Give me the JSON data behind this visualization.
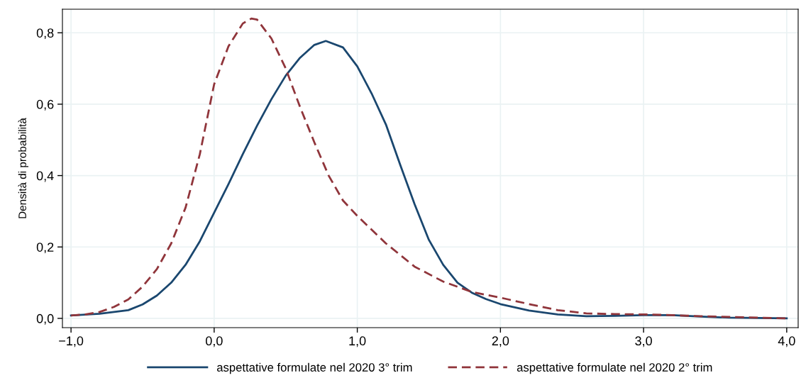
{
  "chart_data": {
    "type": "line",
    "ylabel": "Densità di probabilità",
    "xlim": [
      -1.06,
      4.08
    ],
    "ylim": [
      -0.026,
      0.866
    ],
    "xticks": [
      {
        "value": -1,
        "label": "−1,0"
      },
      {
        "value": 0,
        "label": "0,0"
      },
      {
        "value": 1,
        "label": "1,0"
      },
      {
        "value": 2,
        "label": "2,0"
      },
      {
        "value": 3,
        "label": "3,0"
      },
      {
        "value": 4,
        "label": "4,0"
      }
    ],
    "yticks": [
      {
        "value": 0,
        "label": "0,0"
      },
      {
        "value": 0.2,
        "label": "0,2"
      },
      {
        "value": 0.4,
        "label": "0,4"
      },
      {
        "value": 0.6,
        "label": "0,6"
      },
      {
        "value": 0.8,
        "label": "0,8"
      }
    ],
    "grid": true,
    "legend": "bottom",
    "marker": "none",
    "series": [
      {
        "name": "aspettative formulate nel 2020 3° trim",
        "color": "#1a476f",
        "line_style": "solid",
        "x": [
          -1,
          -0.8,
          -0.6,
          -0.5,
          -0.4,
          -0.3,
          -0.2,
          -0.1,
          0,
          0.1,
          0.2,
          0.3,
          0.4,
          0.5,
          0.6,
          0.7,
          0.78,
          0.9,
          1.0,
          1.1,
          1.2,
          1.3,
          1.4,
          1.5,
          1.6,
          1.7,
          1.8,
          1.9,
          2.0,
          2.2,
          2.4,
          2.6,
          2.8,
          3.0,
          3.2,
          3.4,
          3.6,
          3.8,
          4.0
        ],
        "values": [
          0.008,
          0.013,
          0.023,
          0.039,
          0.064,
          0.1,
          0.15,
          0.216,
          0.296,
          0.376,
          0.46,
          0.54,
          0.614,
          0.68,
          0.73,
          0.766,
          0.777,
          0.759,
          0.706,
          0.63,
          0.543,
          0.43,
          0.32,
          0.22,
          0.15,
          0.1,
          0.072,
          0.054,
          0.04,
          0.022,
          0.011,
          0.006,
          0.007,
          0.009,
          0.009,
          0.005,
          0.002,
          0.001,
          0.0
        ]
      },
      {
        "name": "aspettative formulate nel 2020 2° trim",
        "color": "#90353b",
        "line_style": "dashed",
        "x": [
          -1,
          -0.9,
          -0.8,
          -0.7,
          -0.6,
          -0.5,
          -0.4,
          -0.3,
          -0.2,
          -0.1,
          0,
          0.1,
          0.2,
          0.26,
          0.3,
          0.4,
          0.5,
          0.6,
          0.7,
          0.8,
          0.9,
          1.0,
          1.2,
          1.4,
          1.6,
          1.8,
          2.0,
          2.2,
          2.4,
          2.6,
          2.8,
          3.0,
          3.2,
          3.4,
          3.6,
          3.8,
          4.0
        ],
        "values": [
          0.008,
          0.011,
          0.018,
          0.032,
          0.053,
          0.089,
          0.138,
          0.21,
          0.31,
          0.46,
          0.656,
          0.762,
          0.826,
          0.84,
          0.837,
          0.784,
          0.7,
          0.592,
          0.493,
          0.4,
          0.33,
          0.287,
          0.21,
          0.145,
          0.103,
          0.074,
          0.058,
          0.04,
          0.023,
          0.014,
          0.012,
          0.011,
          0.009,
          0.006,
          0.004,
          0.002,
          0.0
        ]
      }
    ]
  }
}
